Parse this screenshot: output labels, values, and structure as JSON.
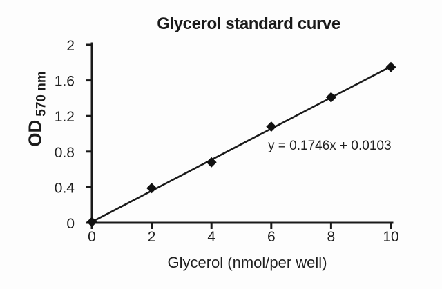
{
  "chart_data": {
    "type": "scatter",
    "title": "Glycerol standard curve",
    "xlabel": "Glycerol (nmol/per well)",
    "ylabel": "OD",
    "ylabel_subscript": "570 nm",
    "equation": "y = 0.1746x + 0.0103",
    "x": [
      0,
      2,
      4,
      6,
      8,
      10
    ],
    "y": [
      0.01,
      0.39,
      0.68,
      1.08,
      1.41,
      1.75
    ],
    "trendline": {
      "slope": 0.1746,
      "intercept": 0.0103
    },
    "xlim": [
      0,
      10
    ],
    "ylim": [
      0,
      2
    ],
    "xticks": [
      0,
      2,
      4,
      6,
      8,
      10
    ],
    "xtick_labels": [
      "0",
      "2",
      "4",
      "6",
      "8",
      "10"
    ],
    "yticks": [
      0,
      0.4,
      0.8,
      1.2,
      1.6,
      2
    ],
    "ytick_labels": [
      "0",
      "0.4",
      "0.8",
      "1.2",
      "1.6",
      "2"
    ],
    "marker": "diamond",
    "grid": false,
    "legend": "none",
    "colors": {
      "axis": "#1a1a1a",
      "line": "#1a1a1a",
      "marker": "#111111",
      "text": "#1f1f1f",
      "background": "#fdfdfd"
    }
  }
}
